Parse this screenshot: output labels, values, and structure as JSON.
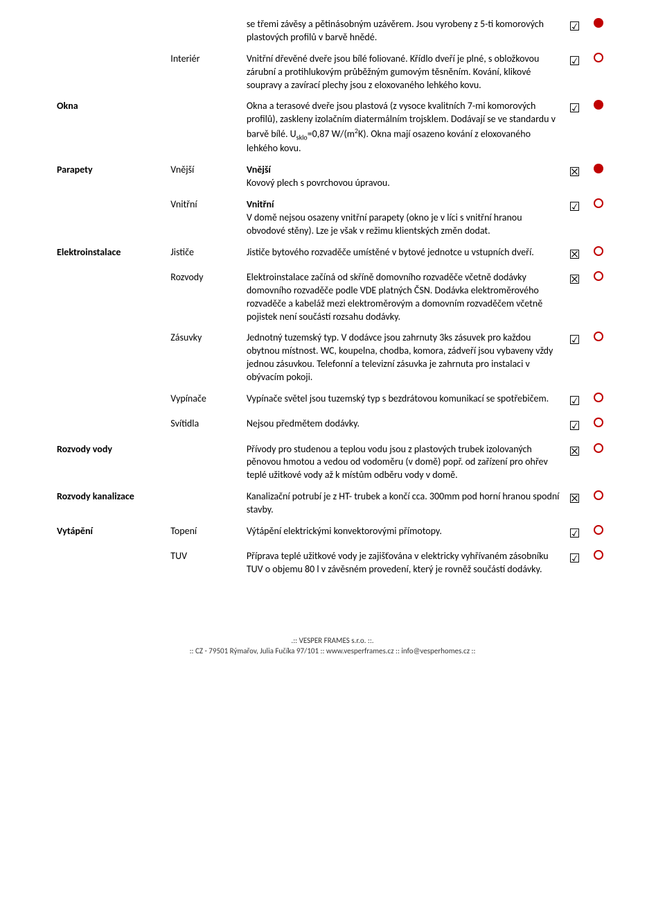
{
  "colors": {
    "accent_red": "#c00000",
    "text": "#000000",
    "background": "#ffffff"
  },
  "icons": {
    "check": "checkbox-checked",
    "cross": "checkbox-crossed",
    "dot_filled": "red-filled-circle",
    "dot_hollow": "red-hollow-circle"
  },
  "rows": [
    {
      "col1": "",
      "col2": "",
      "col3": "se třemi závěsy a pětinásobným uzávěrem. Jsou vyrobeny z 5-ti komorových plastových profilů v barvě hnědé.",
      "check": "check",
      "dot": "filled",
      "gap": false
    },
    {
      "col1": "",
      "col2": "Interiér",
      "col3": "Vnitřní dřevěné dveře jsou bílé foliované. Křídlo dveří je plné, s obložkovou zárubní a protihlukovým průběžným gumovým těsněním. Kování, klikové soupravy a zavírací plechy jsou z eloxovaného lehkého kovu.",
      "check": "check",
      "dot": "hollow",
      "gap": false
    },
    {
      "col1": "Okna",
      "col2": "",
      "col3": "Okna a terasové dveře jsou plastová (z vysoce kvalitních 7-mi komorových profilů), zaskleny izolačním diatermálním trojsklem. Dodávají se ve standardu v barvě bílé. U_sklo=0,87 W/(m^2K). Okna mají osazeno kování z eloxovaného lehkého kovu.",
      "col3_html": true,
      "check": "check",
      "dot": "filled",
      "gap": true
    },
    {
      "col1": "Parapety",
      "col2": "Vnější",
      "col3": "Vnější\nKovový plech s povrchovou úpravou.",
      "col3_bold_first": "Vnější",
      "check": "cross",
      "dot": "filled",
      "gap": false
    },
    {
      "col1": "",
      "col2": "Vnitřní",
      "col3": "Vnitřní\nV domě nejsou osazeny vnitřní parapety (okno je v líci s vnitřní hranou obvodové stěny). Lze je však v režimu klientských změn dodat.",
      "col3_bold_first": "Vnitřní",
      "check": "check",
      "dot": "hollow",
      "gap": false
    },
    {
      "col1": "Elektroinstalace",
      "col2": "Jističe",
      "col3": "Jističe bytového rozvaděče umístěné v bytové jednotce u vstupních dveří.",
      "check": "cross",
      "dot": "hollow",
      "gap": false
    },
    {
      "col1": "",
      "col2": "Rozvody",
      "col3": "Elektroinstalace začíná od skříně domovního rozvaděče včetně dodávky domovního rozvaděče podle VDE platných ČSN. Dodávka elektroměrového rozvaděče a kabeláž mezi elektroměrovým a domovním rozvaděčem včetně pojistek není součástí rozsahu dodávky.",
      "check": "cross",
      "dot": "hollow",
      "gap": false
    },
    {
      "col1": "",
      "col2": "Zásuvky",
      "col3": "Jednotný tuzemský typ. V dodávce jsou zahrnuty 3ks zásuvek pro každou obytnou místnost. WC, koupelna, chodba, komora, zádveří jsou vybaveny vždy jednou zásuvkou. Telefonní a televizní zásuvka je zahrnuta pro instalaci v obývacím pokoji.",
      "check": "check",
      "dot": "hollow",
      "gap": false
    },
    {
      "col1": "",
      "col2": "Vypínače",
      "col3": "Vypínače světel jsou tuzemský typ s bezdrátovou komunikací se spotřebičem.",
      "check": "check",
      "dot": "hollow",
      "gap": false
    },
    {
      "col1": "",
      "col2": "Svítidla",
      "col3": "Nejsou předmětem dodávky.",
      "check": "check",
      "dot": "hollow",
      "gap": false
    },
    {
      "col1": "Rozvody vody",
      "col2": "",
      "col3": "Přívody pro studenou a teplou vodu jsou z plastových trubek izolovaných pěnovou hmotou a vedou od vodoměru (v domě) popř. od zařízení pro ohřev teplé užitkové vody až k místům odběru vody v domě.",
      "check": "cross",
      "dot": "hollow",
      "gap": false
    },
    {
      "col1": "Rozvody kanalizace",
      "col2": "",
      "col3": "Kanalizační potrubí je z HT- trubek a končí cca. 300mm pod horní hranou spodní stavby.",
      "check": "cross",
      "dot": "hollow",
      "gap": false
    },
    {
      "col1": "Vytápění",
      "col2": "Topení",
      "col3": "Výtápění elektrickými konvektorovými přímotopy.",
      "check": "check",
      "dot": "hollow",
      "gap": false
    },
    {
      "col1": "",
      "col2": "TUV",
      "col3": "Příprava teplé užitkové vody je zajišťována v elektricky vyhřívaném zásobníku TUV o objemu 80 l v závěsném provedení, který je rovněž součástí dodávky.",
      "check": "check",
      "dot": "hollow",
      "gap": false
    }
  ],
  "footer": {
    "line1": ".:: VESPER FRAMES s.r.o. ::.",
    "line2": ":: CZ - 79501 Rýmařov, Julia Fučíka 97/101 :: www.vesperframes.cz :: info@vesperhomes.cz ::"
  }
}
